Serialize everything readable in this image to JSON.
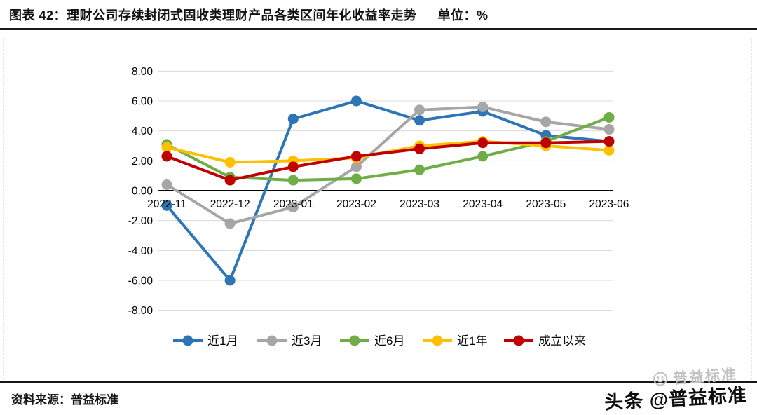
{
  "header": {
    "title": "图表 42：理财公司存续封闭式固收类理财产品各类区间年化收益率走势",
    "unit": "单位：%"
  },
  "chart_data": {
    "type": "line",
    "title": "理财公司存续封闭式固收类理财产品各类区间年化收益率走势",
    "unit": "%",
    "categories": [
      "2022-11",
      "2022-12",
      "2023-01",
      "2023-02",
      "2023-03",
      "2023-04",
      "2023-05",
      "2023-06"
    ],
    "series": [
      {
        "name": "近1月",
        "color": "#2E75B6",
        "values": [
          -1.0,
          -6.0,
          4.8,
          6.0,
          4.7,
          5.3,
          3.7,
          3.3
        ]
      },
      {
        "name": "近3月",
        "color": "#A6A6A6",
        "values": [
          0.4,
          -2.2,
          -1.1,
          1.6,
          5.4,
          5.6,
          4.6,
          4.1
        ]
      },
      {
        "name": "近6月",
        "color": "#70AD47",
        "values": [
          3.1,
          0.9,
          0.7,
          0.8,
          1.4,
          2.3,
          3.3,
          4.9
        ]
      },
      {
        "name": "近1年",
        "color": "#FFC000",
        "values": [
          2.9,
          1.9,
          2.0,
          2.2,
          3.0,
          3.3,
          3.0,
          2.7
        ]
      },
      {
        "name": "成立以来",
        "color": "#C00000",
        "values": [
          2.3,
          0.7,
          1.6,
          2.3,
          2.8,
          3.2,
          3.2,
          3.3
        ]
      }
    ],
    "ylim": [
      -8,
      8
    ],
    "ytick_step": 2,
    "ytick_labels": [
      "8.00",
      "6.00",
      "4.00",
      "2.00",
      "0.00",
      "-2.00",
      "-4.00",
      "-6.00",
      "-8.00"
    ],
    "grid": true,
    "legend_position": "bottom",
    "grid_color": "#d9d9d9",
    "axis_color": "#000000"
  },
  "footer": {
    "source": "资料来源：普益标准"
  },
  "watermark": {
    "text": "头条 @普益标准",
    "ghost": "普益标准"
  }
}
